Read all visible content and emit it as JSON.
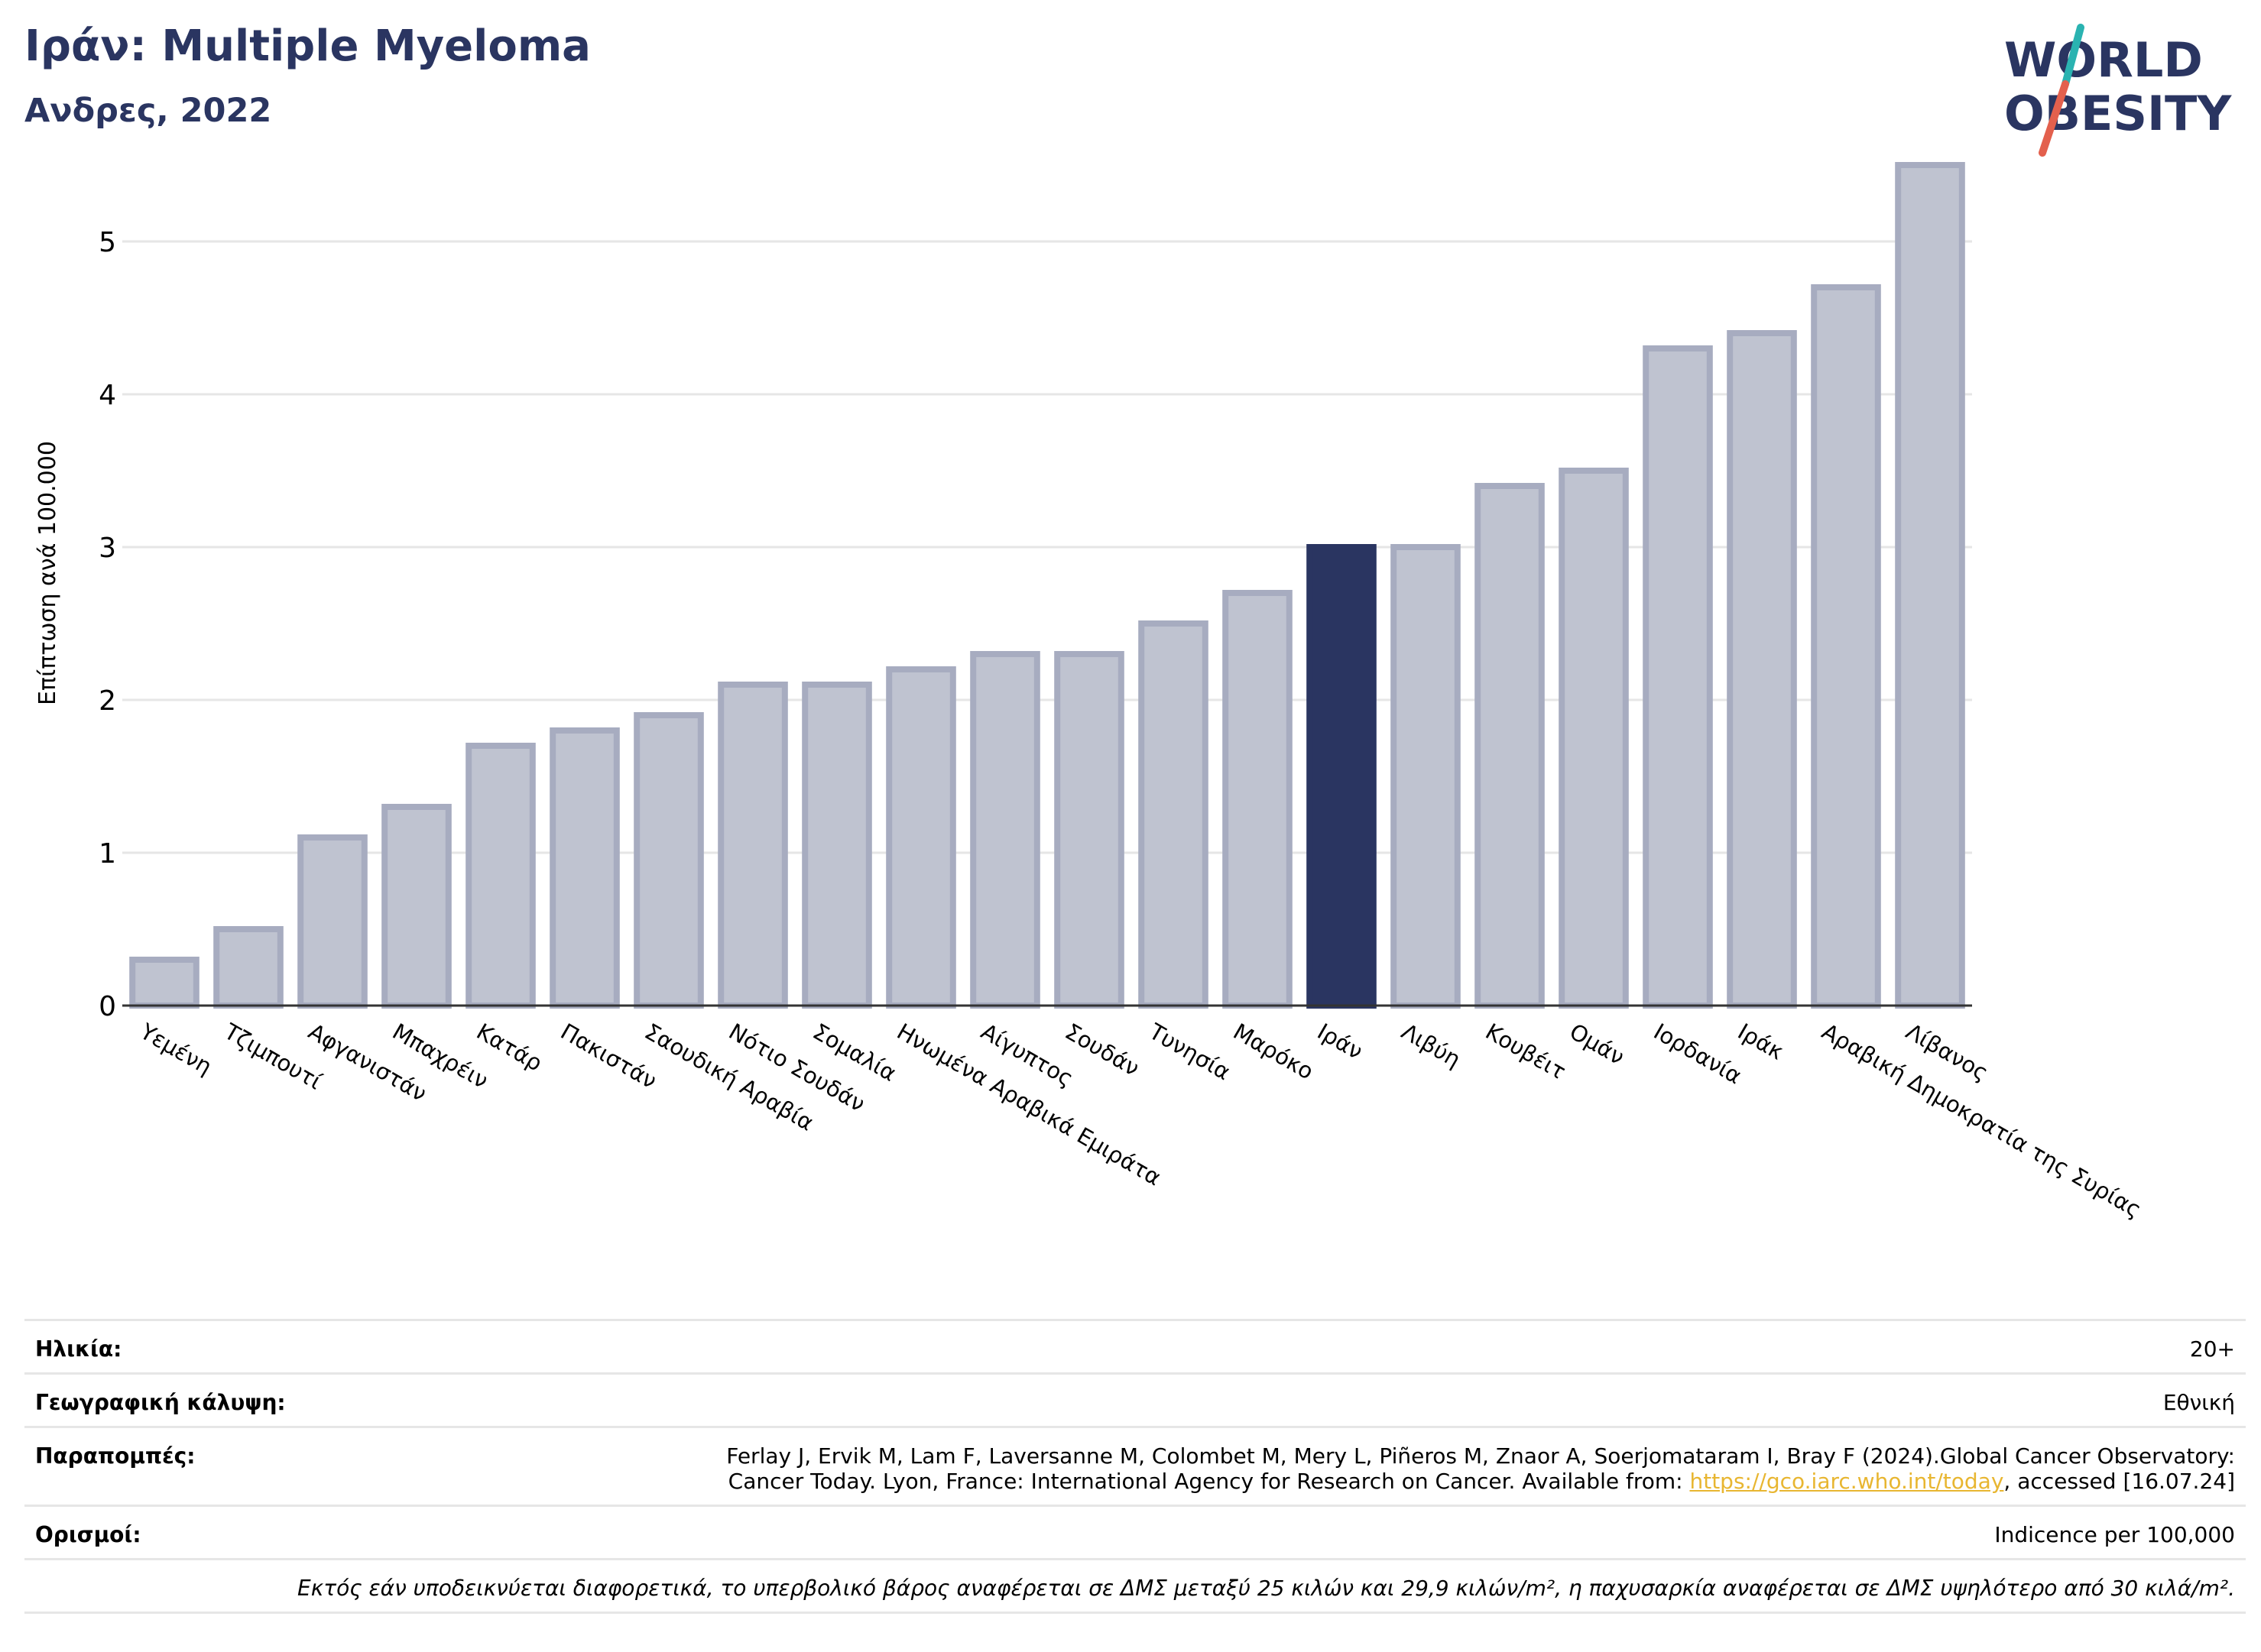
{
  "header": {
    "title": "Ιράν: Multiple Myeloma",
    "subtitle": "Ανδρες, 2022"
  },
  "logo": {
    "line1": "WORLD",
    "line2": "OBESITY",
    "slash_colors": [
      "#2ab3b1",
      "#e3604d"
    ],
    "text_color": "#2a3561"
  },
  "chart_data": {
    "type": "bar",
    "ylabel": "Επίπτωση ανά 100.000",
    "ylim": [
      0,
      5.5
    ],
    "yticks": [
      0,
      1,
      2,
      3,
      4,
      5
    ],
    "grid": true,
    "highlight": "Ιράν",
    "colors": {
      "bar": "#bfc3d0",
      "bar_edge": "#a7acc0",
      "highlight": "#2a3561",
      "grid": "#e6e6e6"
    },
    "categories": [
      "Υεμένη",
      "Τζιμπουτί",
      "Αφγανιστάν",
      "Μπαχρέιν",
      "Κατάρ",
      "Πακιστάν",
      "Σαουδική Αραβία",
      "Νότιο Σουδάν",
      "Σομαλία",
      "Ηνωμένα Αραβικά Εμιράτα",
      "Αίγυπτος",
      "Σουδάν",
      "Τυνησία",
      "Μαρόκο",
      "Ιράν",
      "Λιβύη",
      "Κουβέιτ",
      "Ομάν",
      "Ιορδανία",
      "Ιράκ",
      "Αραβική Δημοκρατία της Συρίας",
      "Λίβανος"
    ],
    "values": [
      0.3,
      0.5,
      1.1,
      1.3,
      1.7,
      1.8,
      1.9,
      2.1,
      2.1,
      2.2,
      2.3,
      2.3,
      2.5,
      2.7,
      3.0,
      3.0,
      3.4,
      3.5,
      4.3,
      4.4,
      4.7,
      5.5
    ]
  },
  "info": {
    "age": {
      "label": "Ηλικία:",
      "value": "20+"
    },
    "coverage": {
      "label": "Γεωγραφική κάλυψη:",
      "value": "Εθνική"
    },
    "references": {
      "label": "Παραπομπές:",
      "line1": "Ferlay J, Ervik M, Lam F, Laversanne M, Colombet M, Mery L, Piñeros M, Znaor A, Soerjomataram I, Bray F (2024).Global Cancer Observatory:",
      "line2_pre": "Cancer Today. Lyon, France: International Agency for Research on Cancer. Available from: ",
      "link": "https://gco.iarc.who.int/today",
      "line2_post": ", accessed [16.07.24]"
    },
    "definitions": {
      "label": "Ορισμοί:",
      "value": "Indicence per 100,000"
    },
    "note": "Εκτός εάν υποδεικνύεται διαφορετικά, το υπερβολικό βάρος αναφέρεται σε ΔΜΣ μεταξύ 25 κιλών και 29,9 κιλών/m², η παχυσαρκία αναφέρεται σε ΔΜΣ υψηλότερο από 30 κιλά/m²."
  }
}
